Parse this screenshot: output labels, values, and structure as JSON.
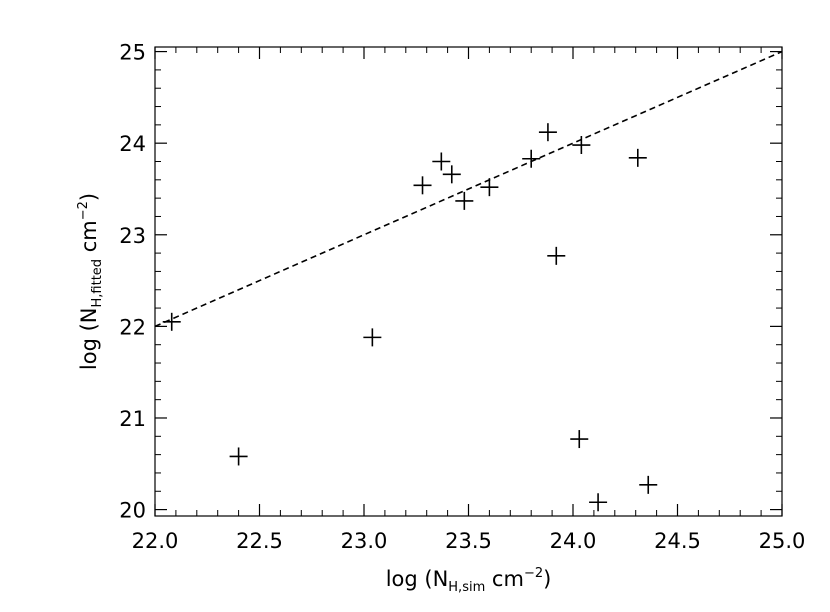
{
  "chart_data": {
    "type": "scatter",
    "title": "",
    "xlabel": {
      "prefix": "log  (N",
      "subscript": "H,sim",
      "unit": " cm",
      "superscript": "−2",
      "suffix": ")"
    },
    "ylabel": {
      "prefix": "log  (N",
      "subscript": "H,fitted",
      "unit": " cm",
      "superscript": "−2",
      "suffix": ")"
    },
    "xlim": [
      22.0,
      25.0
    ],
    "ylim": [
      19.93,
      25.05
    ],
    "xticks": [
      22.0,
      22.5,
      23.0,
      23.5,
      24.0,
      24.5,
      25.0
    ],
    "xtick_labels": [
      "22.0",
      "22.5",
      "23.0",
      "23.5",
      "24.0",
      "24.5",
      "25.0"
    ],
    "yticks": [
      20,
      21,
      22,
      23,
      24,
      25
    ],
    "ytick_labels": [
      "20",
      "21",
      "22",
      "23",
      "24",
      "25"
    ],
    "grid": false,
    "marker": "plus",
    "series": [
      {
        "marker": "plus",
        "x": [
          22.08,
          22.4,
          23.04,
          23.28,
          23.37,
          23.42,
          23.48,
          23.6,
          23.8,
          23.88,
          23.92,
          24.04,
          24.03,
          24.12,
          24.31,
          24.36
        ],
        "y": [
          22.05,
          20.58,
          21.88,
          23.54,
          23.8,
          23.66,
          23.37,
          23.52,
          23.83,
          24.12,
          22.77,
          23.98,
          20.77,
          20.08,
          23.84,
          20.27
        ]
      }
    ],
    "reference_line": {
      "style": "dashed",
      "x": [
        22.0,
        25.0
      ],
      "y": [
        22.0,
        25.0
      ]
    }
  }
}
